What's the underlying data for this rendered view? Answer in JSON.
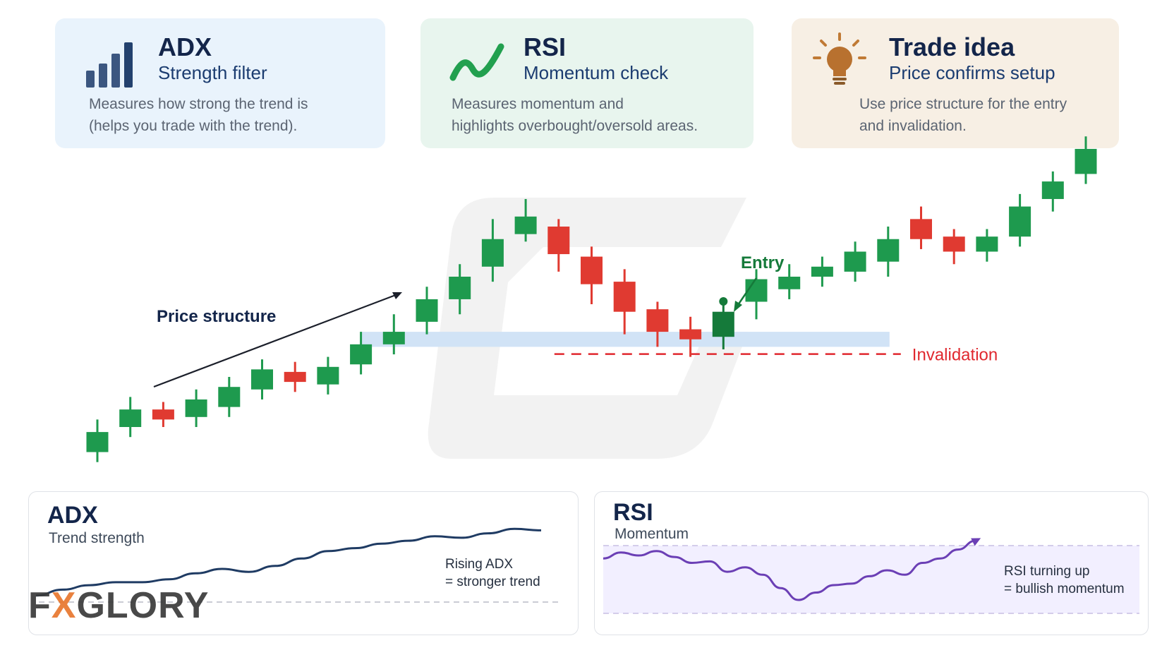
{
  "cards": [
    {
      "title": "ADX",
      "subtitle": "Strength filter",
      "desc1": "Measures how strong the trend is",
      "desc2": "(helps you trade with the trend).",
      "icon": "bar-chart-icon",
      "bg": "#e9f3fc"
    },
    {
      "title": "RSI",
      "subtitle": "Momentum check",
      "desc1": "Measures momentum and",
      "desc2": "highlights overbought/oversold areas.",
      "icon": "trend-wave-icon",
      "bg": "#e8f5ee"
    },
    {
      "title": "Trade idea",
      "subtitle": "Price confirms setup",
      "desc1": "Use price structure for the entry",
      "desc2": "and invalidation.",
      "icon": "lightbulb-icon",
      "bg": "#f7efe4"
    }
  ],
  "chart_data": [
    {
      "type": "candlestick",
      "annotations": {
        "price_structure": "Price structure",
        "entry": "Entry",
        "invalidation": "Invalidation"
      },
      "candles": [
        {
          "o": 10,
          "c": 18,
          "h": 23,
          "l": 6
        },
        {
          "o": 20,
          "c": 27,
          "h": 32,
          "l": 16
        },
        {
          "o": 27,
          "c": 23,
          "h": 30,
          "l": 20
        },
        {
          "o": 24,
          "c": 31,
          "h": 35,
          "l": 20
        },
        {
          "o": 28,
          "c": 36,
          "h": 40,
          "l": 24
        },
        {
          "o": 35,
          "c": 43,
          "h": 47,
          "l": 31
        },
        {
          "o": 42,
          "c": 38,
          "h": 46,
          "l": 34
        },
        {
          "o": 37,
          "c": 44,
          "h": 48,
          "l": 33
        },
        {
          "o": 45,
          "c": 53,
          "h": 58,
          "l": 41
        },
        {
          "o": 53,
          "c": 58,
          "h": 65,
          "l": 49
        },
        {
          "o": 62,
          "c": 71,
          "h": 76,
          "l": 57
        },
        {
          "o": 71,
          "c": 80,
          "h": 85,
          "l": 65
        },
        {
          "o": 84,
          "c": 95,
          "h": 103,
          "l": 78
        },
        {
          "o": 97,
          "c": 104,
          "h": 111,
          "l": 94
        },
        {
          "o": 100,
          "c": 89,
          "h": 103,
          "l": 82
        },
        {
          "o": 88,
          "c": 77,
          "h": 92,
          "l": 69
        },
        {
          "o": 78,
          "c": 66,
          "h": 83,
          "l": 57
        },
        {
          "o": 67,
          "c": 58,
          "h": 70,
          "l": 52
        },
        {
          "o": 59,
          "c": 55,
          "h": 64,
          "l": 48
        },
        {
          "o": 56,
          "c": 66,
          "h": 69,
          "l": 51
        },
        {
          "o": 70,
          "c": 79,
          "h": 83,
          "l": 63
        },
        {
          "o": 75,
          "c": 80,
          "h": 85,
          "l": 71
        },
        {
          "o": 80,
          "c": 84,
          "h": 88,
          "l": 76
        },
        {
          "o": 82,
          "c": 90,
          "h": 94,
          "l": 78
        },
        {
          "o": 86,
          "c": 95,
          "h": 100,
          "l": 80
        },
        {
          "o": 103,
          "c": 95,
          "h": 108,
          "l": 91
        },
        {
          "o": 96,
          "c": 90,
          "h": 99,
          "l": 85
        },
        {
          "o": 90,
          "c": 96,
          "h": 99,
          "l": 86
        },
        {
          "o": 96,
          "c": 108,
          "h": 113,
          "l": 92
        },
        {
          "o": 111,
          "c": 118,
          "h": 122,
          "l": 106
        },
        {
          "o": 121,
          "c": 131,
          "h": 136,
          "l": 117
        }
      ],
      "support_zone": [
        52,
        58
      ],
      "invalidation_level": 48,
      "entry_candle_index": 19
    },
    {
      "type": "line",
      "title": "ADX",
      "subtitle": "Trend strength",
      "note1": "Rising ADX",
      "note2": "= stronger trend",
      "values": [
        12,
        16,
        19,
        21,
        21,
        23,
        27,
        30,
        28,
        32,
        37,
        42,
        44,
        47,
        49,
        52,
        51,
        54,
        57,
        56
      ],
      "threshold": 15,
      "line_color": "#1f3b63"
    },
    {
      "type": "line",
      "title": "RSI",
      "subtitle": "Momentum",
      "note1": "RSI turning up",
      "note2": "= bullish momentum",
      "values": [
        58,
        62,
        60,
        63,
        59,
        55,
        56,
        49,
        52,
        47,
        38,
        30,
        35,
        40,
        41,
        46,
        50,
        47,
        55,
        58,
        64,
        70
      ],
      "line_color": "#6b3fb5"
    }
  ],
  "watermark": {
    "pre": "F",
    "x": "X",
    "post": "GLORY"
  },
  "colors": {
    "bull": "#1e9a4e",
    "bear": "#e03a31",
    "entry": "#157a3a",
    "zone": "#cfe2f6",
    "invalid": "#e0282e"
  }
}
